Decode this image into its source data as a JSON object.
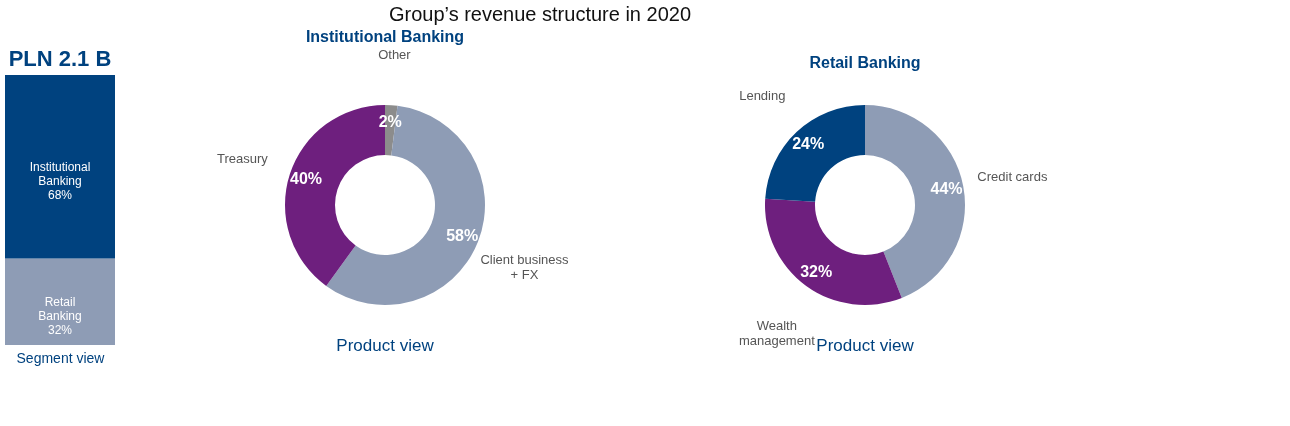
{
  "chart_data": [
    {
      "type": "bar",
      "stacked": true,
      "title": "PLN 2.1 B",
      "xlabel": "Segment view",
      "annotations": [
        "Group’s revenue structure in 2020"
      ],
      "categories": [
        null
      ],
      "tick_labels": false,
      "legend": false,
      "series": [
        {
          "name": "Retail Banking",
          "color": "#8e9cb5",
          "values": [
            32
          ],
          "value_labels": [
            "32%"
          ]
        },
        {
          "name": "Institutional Banking",
          "color": "#00427f",
          "values": [
            68
          ],
          "value_labels": [
            "68%"
          ]
        }
      ]
    },
    {
      "type": "donut",
      "title": "Institutional Banking",
      "xlabel": "Product view",
      "categories": [
        "Other",
        "Client business + FX",
        "Treasury"
      ],
      "values": [
        2,
        58,
        40
      ],
      "colors": [
        "#8c8c8c",
        "#8e9cb5",
        "#6e1f7e"
      ],
      "value_labels": [
        "2%",
        "58%",
        "40%"
      ]
    },
    {
      "type": "donut",
      "title": "Retail Banking",
      "xlabel": "Product view",
      "categories": [
        "Credit cards",
        "Wealth management",
        "Lending"
      ],
      "values": [
        44,
        32,
        24
      ],
      "colors": [
        "#8e9cb5",
        "#6e1f7e",
        "#00427f"
      ],
      "value_labels": [
        "44%",
        "32%",
        "24%"
      ]
    }
  ]
}
